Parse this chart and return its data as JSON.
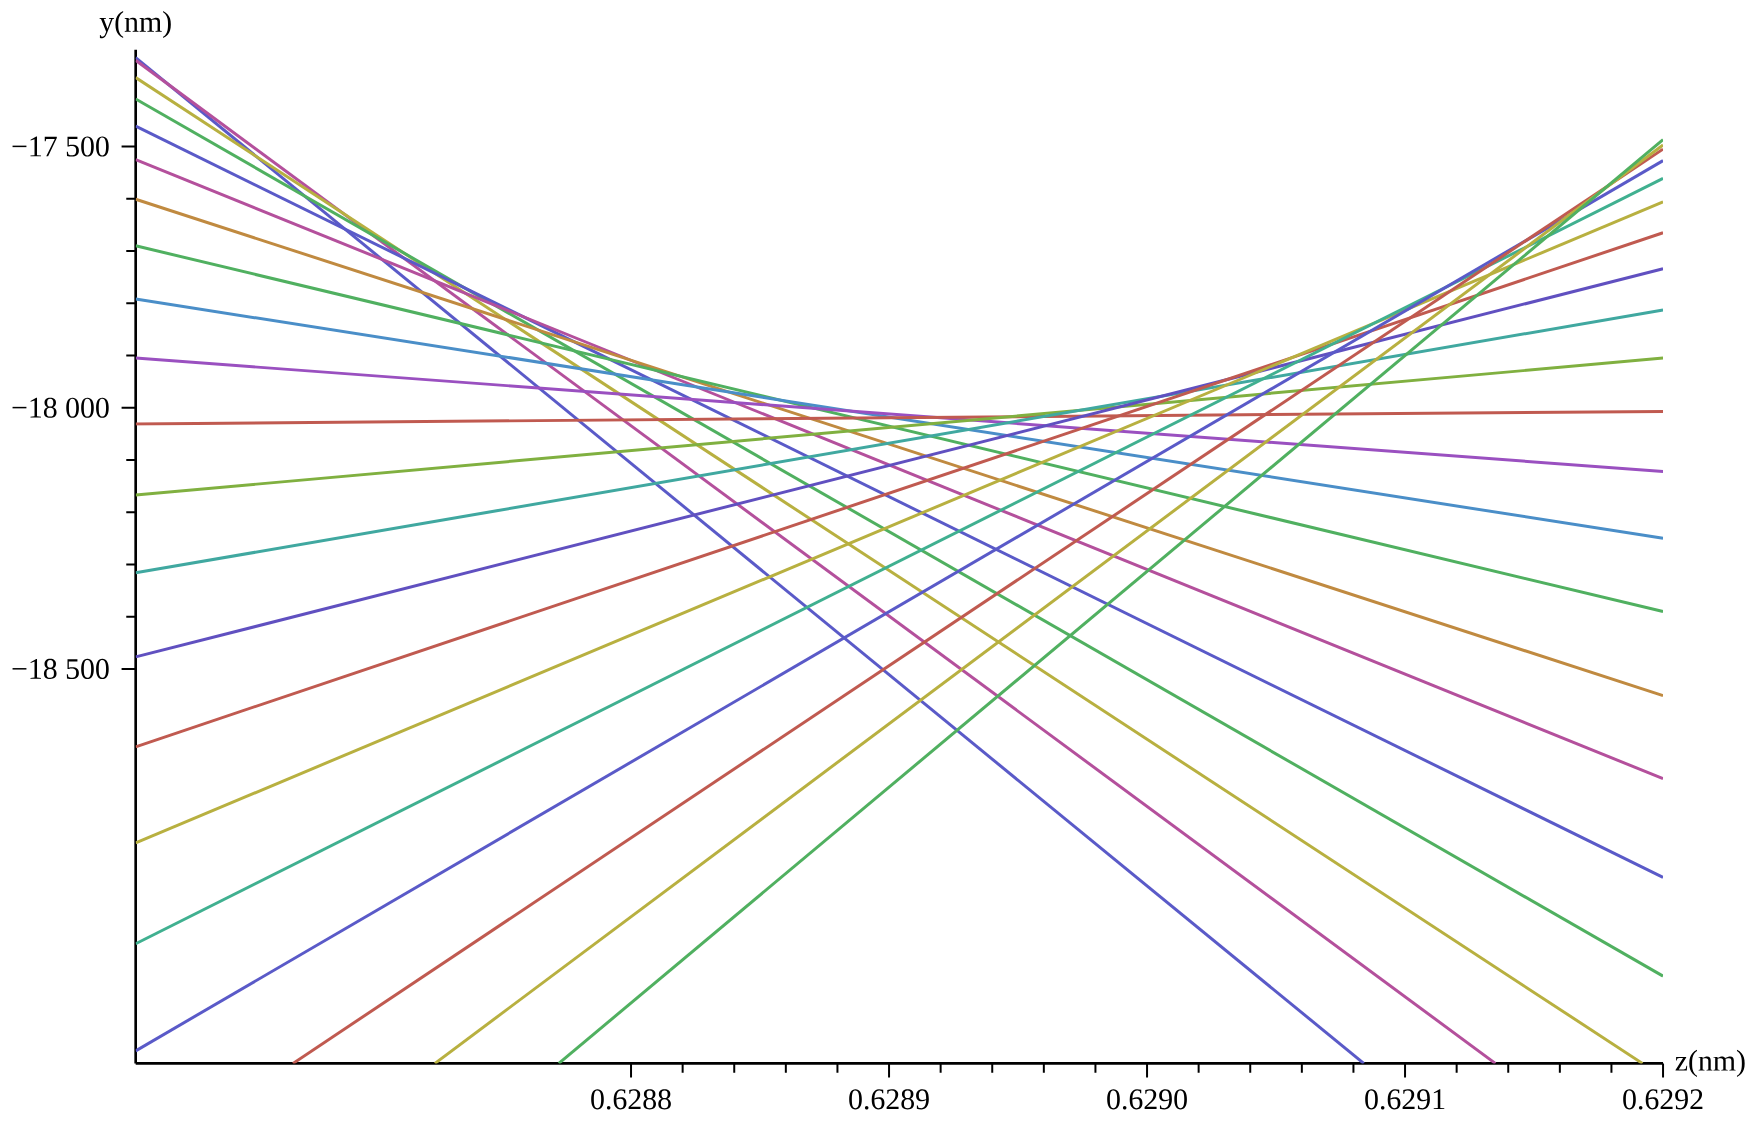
{
  "chart_data": {
    "type": "line",
    "xlabel": "z(nm)",
    "ylabel": "y(nm)",
    "xlim": [
      0.628608,
      0.6292
    ],
    "ylim": [
      -19255,
      -17315
    ],
    "xticks": [
      0.6288,
      0.6289,
      {
        "value": 0.629,
        "label": "0.6290"
      },
      0.6291,
      0.6292
    ],
    "yticks": [
      {
        "value": -18500,
        "label": "−18 500"
      },
      {
        "value": -18000,
        "label": "−18 000"
      },
      {
        "value": -17500,
        "label": "−17 500"
      }
    ],
    "series": [
      {
        "color": "#5a5ac8",
        "x": [
          0.628608,
          0.629084
        ],
        "values": [
          -17330,
          -19255
        ]
      },
      {
        "color": "#b4509c",
        "x": [
          0.628608,
          0.629135
        ],
        "values": [
          -17335,
          -19255
        ]
      },
      {
        "color": "#b8b040",
        "x": [
          0.628608,
          0.629192
        ],
        "values": [
          -17368,
          -19255
        ]
      },
      {
        "color": "#50b060",
        "x": [
          0.628608,
          0.6292
        ],
        "values": [
          -17409,
          -19088
        ]
      },
      {
        "color": "#5a5ac8",
        "x": [
          0.628608,
          0.6292
        ],
        "values": [
          -17461,
          -18899
        ]
      },
      {
        "color": "#b4509c",
        "x": [
          0.628608,
          0.6292
        ],
        "values": [
          -17525,
          -18710
        ]
      },
      {
        "color": "#c08a40",
        "x": [
          0.628608,
          0.6292
        ],
        "values": [
          -17601,
          -18551
        ]
      },
      {
        "color": "#50b060",
        "x": [
          0.628608,
          0.6292
        ],
        "values": [
          -17690,
          -18390
        ]
      },
      {
        "color": "#4a8ec8",
        "x": [
          0.628608,
          0.6292
        ],
        "values": [
          -17792,
          -18250
        ]
      },
      {
        "color": "#9a50c0",
        "x": [
          0.628608,
          0.6292
        ],
        "values": [
          -17905,
          -18122
        ]
      },
      {
        "color": "#c05a50",
        "x": [
          0.628608,
          0.6292
        ],
        "values": [
          -18031,
          -18007
        ]
      },
      {
        "color": "#80b040",
        "x": [
          0.628608,
          0.6292
        ],
        "values": [
          -18167,
          -17905
        ]
      },
      {
        "color": "#40a8a0",
        "x": [
          0.628608,
          0.6292
        ],
        "values": [
          -18316,
          -17813
        ]
      },
      {
        "color": "#6050c0",
        "x": [
          0.628608,
          0.6292
        ],
        "values": [
          -18477,
          -17734
        ]
      },
      {
        "color": "#c05a50",
        "x": [
          0.628608,
          0.6292
        ],
        "values": [
          -18649,
          -17665
        ]
      },
      {
        "color": "#b8b040",
        "x": [
          0.628608,
          0.6292
        ],
        "values": [
          -18833,
          -17606
        ]
      },
      {
        "color": "#40b090",
        "x": [
          0.628608,
          0.6292
        ],
        "values": [
          -19026,
          -17561
        ]
      },
      {
        "color": "#5a5ac8",
        "x": [
          0.628608,
          0.6292
        ],
        "values": [
          -19231,
          -17527
        ]
      },
      {
        "color": "#c05a50",
        "x": [
          0.628669,
          0.6292
        ],
        "values": [
          -19255,
          -17505
        ]
      },
      {
        "color": "#b8b040",
        "x": [
          0.628724,
          0.6292
        ],
        "values": [
          -19255,
          -17497
        ]
      },
      {
        "color": "#50b060",
        "x": [
          0.628772,
          0.6292
        ],
        "values": [
          -19255,
          -17487
        ]
      }
    ]
  }
}
